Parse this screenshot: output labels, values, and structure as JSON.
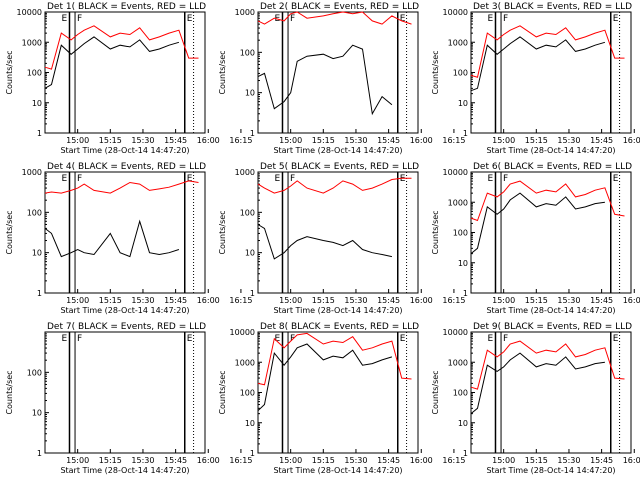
{
  "colors": {
    "events": "#000000",
    "lld": "#ff0000"
  },
  "markers": {
    "E": "E",
    "F": "F"
  },
  "xticks": [
    "15:00",
    "15:15",
    "15:30",
    "15:45",
    "16:00",
    "16:15"
  ],
  "xlabel": "Start Time (28-Oct-14 14:47:20)",
  "ylabel": "Counts/sec",
  "chart_data": [
    {
      "type": "line",
      "title": "Det 1(  BLACK = Events, RED = LLD",
      "ylim": [
        1,
        10000
      ],
      "ylog": true,
      "yticks": [
        "1",
        "10",
        "100",
        "1000",
        "10000"
      ],
      "x": [
        0,
        0.2,
        0.5,
        0.8,
        1.0,
        1.2,
        1.5,
        2,
        2.3,
        2.6,
        2.9,
        3.2,
        3.5,
        3.8,
        4.1,
        4.4,
        4.7
      ],
      "series": [
        {
          "name": "Events",
          "color": "#000000",
          "values": [
            30,
            40,
            800,
            400,
            600,
            900,
            1500,
            600,
            800,
            700,
            1200,
            500,
            600,
            800,
            1000,
            null,
            10
          ]
        },
        {
          "name": "LLD",
          "color": "#ff0000",
          "values": [
            150,
            130,
            2000,
            1200,
            1800,
            2500,
            3500,
            1500,
            2000,
            1800,
            3000,
            1200,
            1500,
            2000,
            2500,
            300,
            300
          ]
        }
      ]
    },
    {
      "type": "line",
      "title": "Det 2(  BLACK = Events, RED = LLD",
      "ylim": [
        1,
        1000
      ],
      "ylog": true,
      "yticks": [
        "1",
        "10",
        "100",
        "1000"
      ],
      "x": [
        0,
        0.2,
        0.5,
        0.8,
        1.0,
        1.2,
        1.5,
        2,
        2.3,
        2.6,
        2.9,
        3.2,
        3.5,
        3.8,
        4.1,
        4.4,
        4.7
      ],
      "series": [
        {
          "name": "Events",
          "color": "#000000",
          "values": [
            25,
            30,
            4,
            6,
            10,
            60,
            80,
            90,
            70,
            80,
            150,
            120,
            3,
            8,
            5,
            null,
            null
          ]
        },
        {
          "name": "LLD",
          "color": "#ff0000",
          "values": [
            600,
            500,
            700,
            600,
            900,
            1000,
            700,
            800,
            900,
            1000,
            900,
            1000,
            600,
            500,
            800,
            600,
            500
          ]
        }
      ]
    },
    {
      "type": "line",
      "title": "Det 3(  BLACK = Events, RED = LLD",
      "ylim": [
        1,
        10000
      ],
      "ylog": true,
      "yticks": [
        "1",
        "10",
        "100",
        "1000",
        "10000"
      ],
      "x": [
        0,
        0.2,
        0.5,
        0.8,
        1.0,
        1.2,
        1.5,
        2,
        2.3,
        2.6,
        2.9,
        3.2,
        3.5,
        3.8,
        4.1,
        4.4,
        4.7
      ],
      "series": [
        {
          "name": "Events",
          "color": "#000000",
          "values": [
            25,
            30,
            800,
            400,
            600,
            900,
            1500,
            600,
            800,
            700,
            1200,
            500,
            600,
            800,
            1000,
            null,
            10
          ]
        },
        {
          "name": "LLD",
          "color": "#ff0000",
          "values": [
            80,
            70,
            2000,
            1200,
            1800,
            2500,
            3500,
            1500,
            2000,
            1800,
            3000,
            1200,
            1500,
            2000,
            2500,
            300,
            300
          ]
        }
      ]
    },
    {
      "type": "line",
      "title": "Det 4(  BLACK = Events, RED = LLD",
      "ylim": [
        1,
        1000
      ],
      "ylog": true,
      "yticks": [
        "1",
        "10",
        "100",
        "1000"
      ],
      "x": [
        0,
        0.2,
        0.5,
        0.8,
        1.0,
        1.2,
        1.5,
        2,
        2.3,
        2.6,
        2.9,
        3.2,
        3.5,
        3.8,
        4.1,
        4.4,
        4.7
      ],
      "series": [
        {
          "name": "Events",
          "color": "#000000",
          "values": [
            40,
            30,
            8,
            10,
            12,
            10,
            9,
            30,
            10,
            8,
            60,
            10,
            9,
            10,
            12,
            null,
            null
          ]
        },
        {
          "name": "LLD",
          "color": "#ff0000",
          "values": [
            300,
            320,
            300,
            350,
            400,
            500,
            350,
            300,
            400,
            550,
            500,
            350,
            380,
            420,
            500,
            600,
            550
          ]
        }
      ]
    },
    {
      "type": "line",
      "title": "Det 5(  BLACK = Events, RED = LLD",
      "ylim": [
        1,
        1000
      ],
      "ylog": true,
      "yticks": [
        "1",
        "10",
        "100",
        "1000"
      ],
      "x": [
        0,
        0.2,
        0.5,
        0.8,
        1.0,
        1.2,
        1.5,
        2,
        2.3,
        2.6,
        2.9,
        3.2,
        3.5,
        3.8,
        4.1,
        4.4,
        4.7
      ],
      "series": [
        {
          "name": "Events",
          "color": "#000000",
          "values": [
            50,
            40,
            7,
            10,
            15,
            20,
            25,
            20,
            18,
            15,
            20,
            12,
            10,
            9,
            8,
            null,
            null
          ]
        },
        {
          "name": "LLD",
          "color": "#ff0000",
          "values": [
            500,
            400,
            300,
            350,
            450,
            600,
            400,
            300,
            400,
            600,
            500,
            350,
            400,
            500,
            650,
            700,
            700
          ]
        }
      ]
    },
    {
      "type": "line",
      "title": "Det 6(  BLACK = Events, RED = LLD",
      "ylim": [
        1,
        10000
      ],
      "ylog": true,
      "yticks": [
        "1",
        "10",
        "100",
        "1000",
        "10000"
      ],
      "x": [
        0,
        0.2,
        0.5,
        0.8,
        1.0,
        1.2,
        1.5,
        2,
        2.3,
        2.6,
        2.9,
        3.2,
        3.5,
        3.8,
        4.1,
        4.4,
        4.7
      ],
      "series": [
        {
          "name": "Events",
          "color": "#000000",
          "values": [
            20,
            30,
            700,
            400,
            600,
            1200,
            2000,
            700,
            900,
            800,
            1500,
            600,
            700,
            900,
            1000,
            null,
            8
          ]
        },
        {
          "name": "LLD",
          "color": "#ff0000",
          "values": [
            300,
            250,
            2000,
            1500,
            2200,
            4000,
            5000,
            2000,
            2500,
            2200,
            4000,
            1500,
            1800,
            2500,
            3000,
            400,
            350
          ]
        }
      ]
    },
    {
      "type": "line",
      "title": "Det 7(  BLACK = Events, RED = LLD",
      "ylim": [
        1,
        1000
      ],
      "ylog": true,
      "yticks": [
        "1",
        "10",
        "100"
      ],
      "x": [],
      "series": []
    },
    {
      "type": "line",
      "title": "Det 8(  BLACK = Events, RED = LLD",
      "ylim": [
        1,
        10000
      ],
      "ylog": true,
      "yticks": [
        "1",
        "10",
        "100",
        "1000",
        "10000"
      ],
      "x": [
        0,
        0.2,
        0.5,
        0.8,
        1.0,
        1.2,
        1.5,
        2,
        2.3,
        2.6,
        2.9,
        3.2,
        3.5,
        3.8,
        4.1,
        4.4,
        4.7
      ],
      "series": [
        {
          "name": "Events",
          "color": "#000000",
          "values": [
            25,
            40,
            2000,
            800,
            1500,
            3000,
            4000,
            1200,
            1600,
            1400,
            2500,
            800,
            900,
            1200,
            1500,
            null,
            8
          ]
        },
        {
          "name": "LLD",
          "color": "#ff0000",
          "values": [
            200,
            180,
            6000,
            3000,
            5000,
            8000,
            9000,
            4000,
            5000,
            4500,
            7000,
            2500,
            3000,
            4000,
            5000,
            300,
            280
          ]
        }
      ]
    },
    {
      "type": "line",
      "title": "Det 9(  BLACK = Events, RED = LLD",
      "ylim": [
        1,
        10000
      ],
      "ylog": true,
      "yticks": [
        "1",
        "10",
        "100",
        "1000",
        "10000"
      ],
      "x": [
        0,
        0.2,
        0.5,
        0.8,
        1.0,
        1.2,
        1.5,
        2,
        2.3,
        2.6,
        2.9,
        3.2,
        3.5,
        3.8,
        4.1,
        4.4,
        4.7
      ],
      "series": [
        {
          "name": "Events",
          "color": "#000000",
          "values": [
            20,
            30,
            800,
            500,
            700,
            1200,
            2000,
            700,
            900,
            800,
            1500,
            600,
            700,
            900,
            1000,
            null,
            10
          ]
        },
        {
          "name": "LLD",
          "color": "#ff0000",
          "values": [
            150,
            130,
            2500,
            1500,
            2200,
            4000,
            5000,
            2000,
            2500,
            2200,
            4000,
            1500,
            1800,
            2500,
            3000,
            300,
            280
          ]
        }
      ]
    }
  ]
}
